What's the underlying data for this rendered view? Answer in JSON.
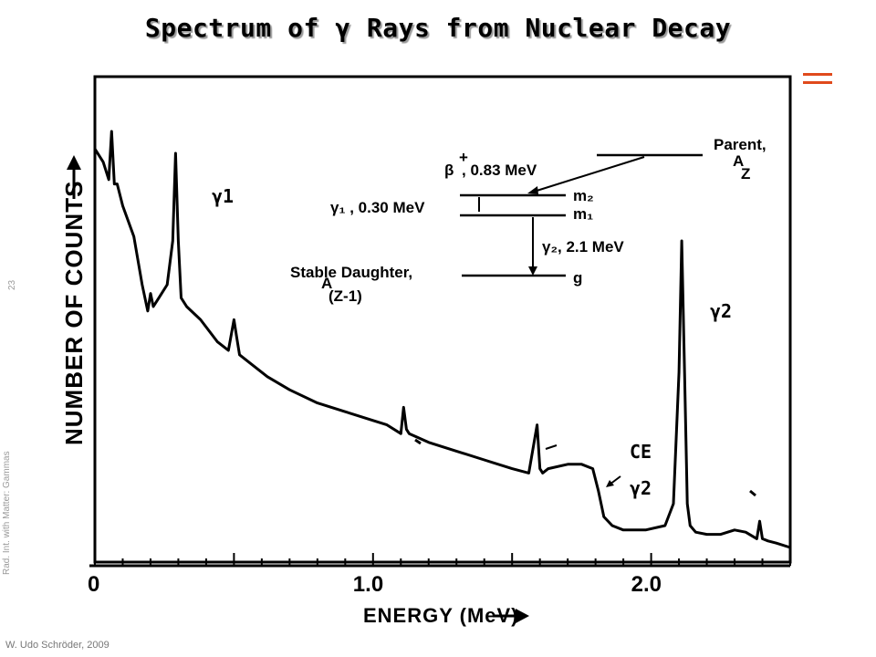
{
  "slide": {
    "title": "Spectrum of γ Rays from Nuclear Decay",
    "side_label": "Rad. Int. with Matter: Gammas",
    "page_number": "23",
    "footer": "W. Udo Schröder, 2009",
    "accent_color": "#e04a1c"
  },
  "chart_data": {
    "type": "line",
    "xlabel": "ENERGY (MeV)",
    "ylabel": "NUMBER OF COUNTS",
    "xlim": [
      0,
      2.5
    ],
    "x_tick_labels": [
      "0",
      "1.0",
      "2.0"
    ],
    "x_tick_values": [
      0,
      1.0,
      2.0
    ],
    "grid": false,
    "series": [
      {
        "x": [
          0.0,
          0.03,
          0.05,
          0.06,
          0.07,
          0.08,
          0.1,
          0.14,
          0.17,
          0.19,
          0.2,
          0.21,
          0.23,
          0.26,
          0.28,
          0.29,
          0.3,
          0.31,
          0.33,
          0.38,
          0.44,
          0.48,
          0.5,
          0.51,
          0.52,
          0.56,
          0.62,
          0.7,
          0.8,
          0.9,
          1.0,
          1.05,
          1.1,
          1.11,
          1.12,
          1.13,
          1.2,
          1.3,
          1.4,
          1.5,
          1.56,
          1.59,
          1.6,
          1.61,
          1.63,
          1.7,
          1.75,
          1.79,
          1.81,
          1.83,
          1.86,
          1.9,
          1.98,
          2.05,
          2.08,
          2.1,
          2.11,
          2.12,
          2.13,
          2.14,
          2.16,
          2.2,
          2.25,
          2.3,
          2.34,
          2.38,
          2.39,
          2.4,
          2.42,
          2.45,
          2.5
        ],
        "y": [
          91,
          88,
          84,
          95,
          83,
          83,
          78,
          71,
          60,
          54,
          58,
          55,
          57,
          60,
          70,
          90,
          70,
          57,
          55,
          52,
          47,
          45,
          52,
          48,
          44,
          42,
          39,
          36,
          33,
          31,
          29,
          28,
          26,
          32,
          27,
          26,
          24,
          22,
          20,
          18,
          17,
          28,
          18,
          17,
          18,
          19,
          19,
          18,
          13,
          7,
          5,
          4,
          4,
          5,
          10,
          40,
          70,
          40,
          10,
          5,
          3.5,
          3,
          3,
          4,
          3.5,
          2,
          6,
          2,
          1.5,
          1,
          0
        ]
      }
    ],
    "annotations": [
      "γ1",
      "γ2",
      "CE",
      "γ2"
    ],
    "inset_level_scheme": {
      "parent": "Parent,",
      "parent_nucleus": "Z",
      "parent_mass_superscript": "A",
      "beta_label": "β",
      "beta_superscript": "+",
      "beta_text": ", 0.83 MeV",
      "level_m2": "m₂",
      "gamma1_text": "γ₁ , 0.30 MeV",
      "level_m1": "m₁",
      "gamma2_text": "γ₂, 2.1 MeV",
      "daughter_line1": "Stable Daughter,",
      "daughter_mass_superscript": "A",
      "daughter_line2": "(Z-1)",
      "level_g": "g"
    }
  }
}
